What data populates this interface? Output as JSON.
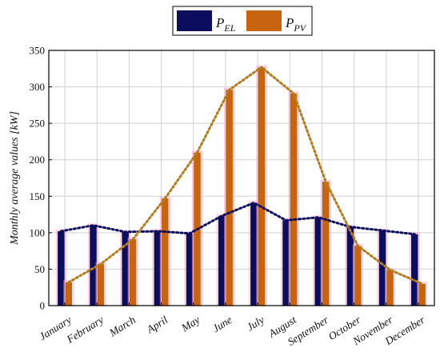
{
  "chart_data": {
    "type": "bar",
    "categories": [
      "January",
      "February",
      "March",
      "April",
      "May",
      "June",
      "July",
      "August",
      "September",
      "October",
      "November",
      "December"
    ],
    "series": [
      {
        "name": "P_EL",
        "label_main": "P",
        "label_sub": "EL",
        "color": "#0d0d5e",
        "trend_color": "#0d0d5e",
        "values": [
          102,
          110,
          101,
          102,
          99,
          123,
          141,
          117,
          121,
          108,
          103,
          98
        ]
      },
      {
        "name": "P_PV",
        "label_main": "P",
        "label_sub": "PV",
        "color": "#c8640f",
        "trend_color": "#b07d1f",
        "values": [
          32,
          57,
          91,
          147,
          210,
          296,
          327,
          291,
          170,
          82,
          49,
          30
        ]
      }
    ],
    "title": "",
    "xlabel": "",
    "ylabel": "Monthly average values [kW]",
    "ylim": [
      0,
      350
    ],
    "yticks": [
      0,
      50,
      100,
      150,
      200,
      250,
      300,
      350
    ],
    "grid": true,
    "legend_position": "top-center",
    "bar_outline_color": "#ff9ec4"
  }
}
